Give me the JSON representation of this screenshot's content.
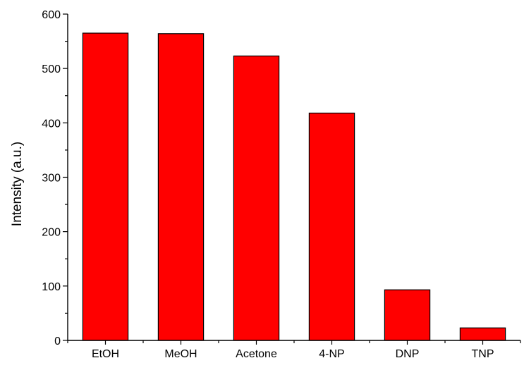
{
  "chart_data": {
    "type": "bar",
    "title": "",
    "xlabel": "",
    "ylabel": "Intensity  (a.u.)",
    "categories": [
      "EtOH",
      "MeOH",
      "Acetone",
      "4-NP",
      "DNP",
      "TNP"
    ],
    "values": [
      565,
      564,
      523,
      418,
      93,
      23
    ],
    "ylim": [
      0,
      600
    ],
    "yticks": [
      "0",
      "100",
      "200",
      "300",
      "400",
      "500",
      "600"
    ],
    "bar_color": "#ff0000",
    "grid": false
  }
}
